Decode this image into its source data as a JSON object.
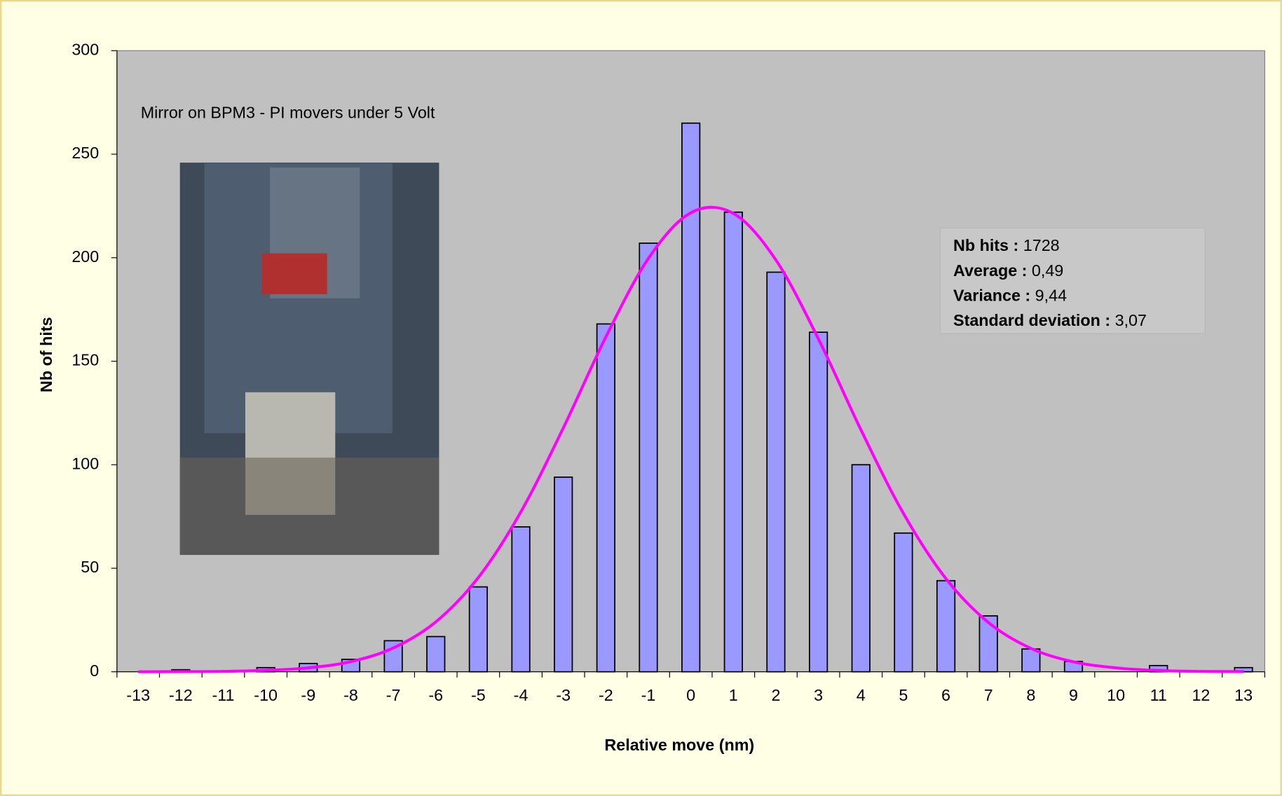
{
  "chart_data": {
    "type": "bar",
    "x_label": "Relative move (nm)",
    "y_label": "Nb of hits",
    "annotation": "Mirror on BPM3 - PI movers under 5 Volt",
    "categories": [
      -13,
      -12,
      -11,
      -10,
      -9,
      -8,
      -7,
      -6,
      -5,
      -4,
      -3,
      -2,
      -1,
      0,
      1,
      2,
      3,
      4,
      5,
      6,
      7,
      8,
      9,
      10,
      11,
      12,
      13
    ],
    "series": [
      {
        "type": "bar",
        "color": "#9999ff",
        "values": [
          0,
          1,
          0,
          2,
          4,
          6,
          15,
          17,
          41,
          70,
          94,
          168,
          207,
          265,
          222,
          193,
          164,
          100,
          67,
          44,
          27,
          11,
          5,
          0,
          3,
          0,
          2
        ]
      },
      {
        "type": "line",
        "color": "#ff00ff",
        "values": [
          0,
          0.1,
          0.2,
          0.7,
          1.9,
          4.9,
          11.5,
          24.1,
          45.5,
          77.2,
          117.8,
          161.7,
          199.6,
          221.7,
          221.4,
          198.9,
          160.8,
          116.9,
          76.5,
          45.0,
          23.8,
          11.3,
          4.8,
          1.9,
          0.6,
          0.2,
          0.1
        ]
      }
    ],
    "ylim": [
      0,
      300
    ],
    "yticks": [
      0,
      50,
      100,
      150,
      200,
      250,
      300
    ],
    "stats": [
      {
        "label": "Nb hits :",
        "value": "1728"
      },
      {
        "label": "Average :",
        "value": "0,49"
      },
      {
        "label": "Variance :",
        "value": "9,44"
      },
      {
        "label": "Standard deviation :",
        "value": "3,07"
      }
    ]
  }
}
